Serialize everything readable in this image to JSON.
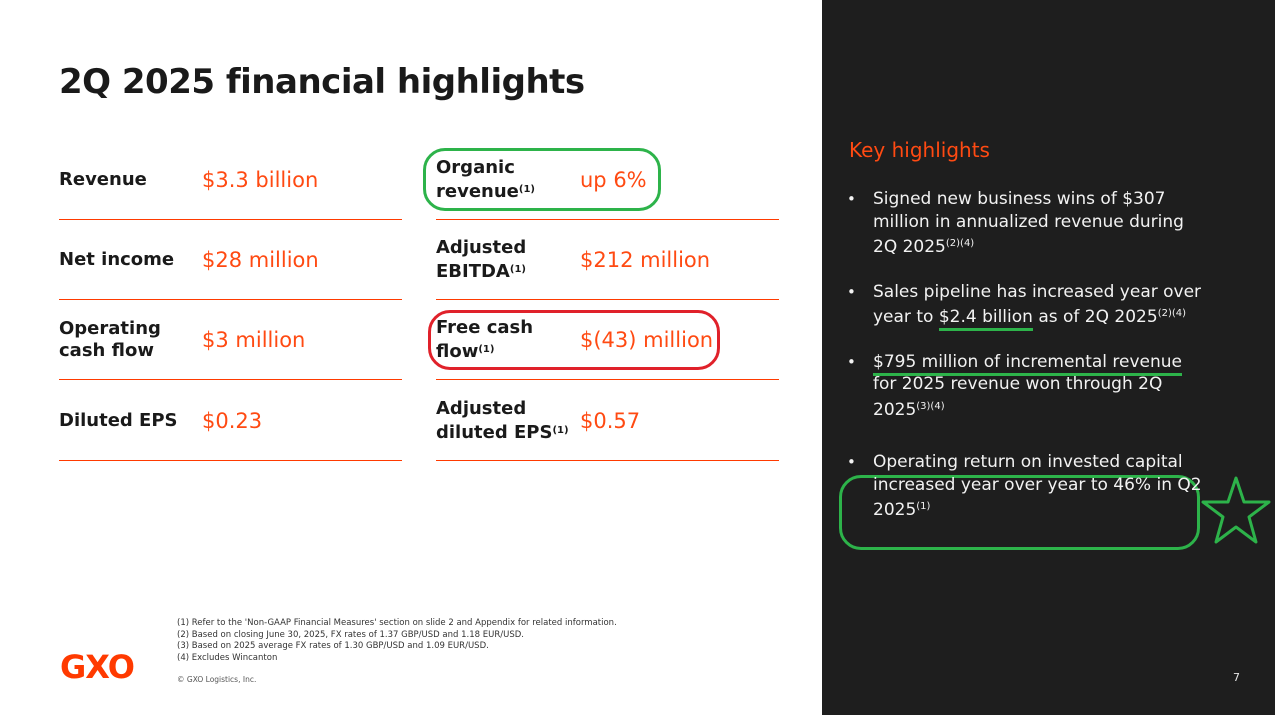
{
  "title": "2Q 2025 financial highlights",
  "metrics_left": [
    {
      "label": "Revenue",
      "value": "$3.3 billion"
    },
    {
      "label": "Net income",
      "value": "$28 million"
    },
    {
      "label_line1": "Operating",
      "label_line2": "cash flow",
      "value": "$3 million"
    },
    {
      "label": "Diluted EPS",
      "value": "$0.23"
    }
  ],
  "metrics_right": [
    {
      "label_line1": "Organic",
      "label_line2": "revenue",
      "sup": "(1)",
      "value": "up 6%"
    },
    {
      "label_line1": "Adjusted",
      "label_line2": "EBITDA",
      "sup": "(1)",
      "value": "$212 million"
    },
    {
      "label_line1": "Free cash",
      "label_line2": "flow",
      "sup": "(1)",
      "value": "$(43) million"
    },
    {
      "label_line1": "Adjusted",
      "label_line2": "diluted EPS",
      "sup": "(1)",
      "value": "$0.57"
    }
  ],
  "footnotes": [
    "(1) Refer to the 'Non-GAAP Financial Measures' section on slide 2 and Appendix for related information.",
    "(2) Based on closing June 30, 2025, FX rates of 1.37 GBP/USD and 1.18 EUR/USD.",
    "(3) Based on 2025 average FX rates of 1.30 GBP/USD and 1.09 EUR/USD.",
    "(4) Excludes Wincanton"
  ],
  "copyright": "© GXO Logistics, Inc.",
  "logo": "GXO",
  "key_highlights": {
    "title": "Key highlights",
    "bullet_char": "•",
    "b1": {
      "text": "Signed new business wins of $307 million in annualized revenue during 2Q 2025",
      "sup": "(2)(4)"
    },
    "b2": {
      "pre": "Sales pipeline has increased year over year to ",
      "highlight": "$2.4 billion",
      "post": " as of 2Q 2025",
      "sup": "(2)(4)"
    },
    "b3": {
      "highlight": "$795 million of incremental revenue",
      "post": " for 2025 revenue won through 2Q 2025",
      "sup": "(3)(4)"
    },
    "b4": {
      "text": "Operating return on invested capital increased year over year to 46% in Q2 2025",
      "sup": "(1)"
    }
  },
  "page_number": "7",
  "colors": {
    "accent": "#ff4a12",
    "dark_panel": "#1e1e1e",
    "annotation_green": "#2db34a",
    "annotation_red": "#e0212a"
  }
}
